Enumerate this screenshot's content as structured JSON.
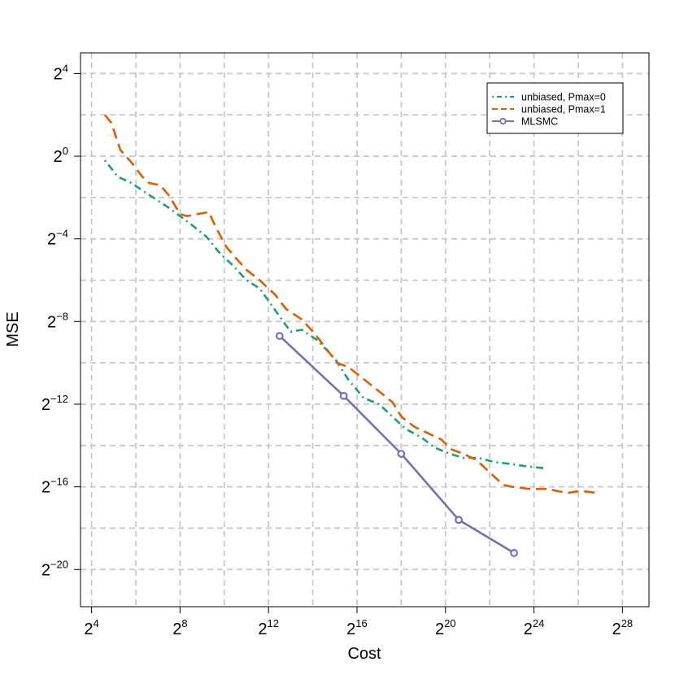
{
  "chart_data": {
    "type": "line",
    "xlabel": "Cost",
    "ylabel": "MSE",
    "scale": "log2",
    "xlim_log2": [
      3.5,
      29.2
    ],
    "ylim_log2": [
      -21.8,
      5.0
    ],
    "x_ticks": [
      {
        "base": "2",
        "exp": "4",
        "log2": 4
      },
      {
        "base": "2",
        "exp": "8",
        "log2": 8
      },
      {
        "base": "2",
        "exp": "12",
        "log2": 12
      },
      {
        "base": "2",
        "exp": "16",
        "log2": 16
      },
      {
        "base": "2",
        "exp": "20",
        "log2": 20
      },
      {
        "base": "2",
        "exp": "24",
        "log2": 24
      },
      {
        "base": "2",
        "exp": "28",
        "log2": 28
      }
    ],
    "y_ticks": [
      {
        "base": "2",
        "exp": "4",
        "log2": 4
      },
      {
        "base": "2",
        "exp": "0",
        "log2": 0
      },
      {
        "base": "2",
        "exp": "−4",
        "log2": -4
      },
      {
        "base": "2",
        "exp": "−8",
        "log2": -8
      },
      {
        "base": "2",
        "exp": "−12",
        "log2": -12
      },
      {
        "base": "2",
        "exp": "−16",
        "log2": -16
      },
      {
        "base": "2",
        "exp": "−20",
        "log2": -20
      }
    ],
    "grid": true,
    "legend_position": "top-right",
    "series": [
      {
        "name": "unbiased, Pmax=0",
        "color": "#1b9e77",
        "dash": "dotdash",
        "marker": "none",
        "x_log2": [
          4.6,
          5.2,
          5.8,
          6.5,
          7.5,
          8.5,
          9.2,
          9.8,
          10.4,
          11.0,
          11.6,
          12.4,
          13.0,
          13.5,
          14.2,
          15.0,
          15.6,
          16.3,
          17.0,
          17.6,
          18.2,
          18.9,
          19.5,
          20.2,
          20.8,
          21.5,
          22.2,
          23.0,
          23.6,
          24.5
        ],
        "y_log2": [
          -0.2,
          -1.0,
          -1.3,
          -1.8,
          -2.5,
          -3.3,
          -3.9,
          -4.7,
          -5.3,
          -6.0,
          -6.4,
          -7.6,
          -8.5,
          -8.4,
          -8.9,
          -9.8,
          -10.8,
          -11.7,
          -12.0,
          -12.6,
          -13.2,
          -13.6,
          -14.1,
          -14.4,
          -14.6,
          -14.6,
          -14.8,
          -14.9,
          -15.0,
          -15.1
        ]
      },
      {
        "name": "unbiased, Pmax=1",
        "color": "#d95f02",
        "dash": "dashed",
        "marker": "none",
        "x_log2": [
          4.6,
          4.9,
          5.3,
          5.8,
          6.3,
          6.6,
          7.1,
          7.5,
          8.0,
          8.3,
          8.8,
          9.3,
          9.6,
          10.1,
          10.5,
          11.0,
          11.6,
          12.3,
          12.8,
          13.5,
          14.1,
          14.6,
          15.1,
          15.6,
          16.2,
          16.9,
          17.6,
          18.0,
          18.6,
          19.2,
          19.8,
          20.3,
          20.8,
          21.4,
          22.0,
          22.6,
          23.0,
          23.8,
          24.6,
          25.5,
          26.1,
          26.9
        ],
        "y_log2": [
          2.0,
          1.6,
          0.3,
          -0.3,
          -1.0,
          -1.3,
          -1.4,
          -1.9,
          -2.8,
          -2.9,
          -2.8,
          -2.7,
          -3.4,
          -4.4,
          -4.9,
          -5.5,
          -6.0,
          -6.7,
          -7.4,
          -7.9,
          -8.6,
          -9.3,
          -10.0,
          -10.2,
          -10.7,
          -11.3,
          -11.9,
          -12.6,
          -13.1,
          -13.4,
          -13.7,
          -14.2,
          -14.4,
          -14.7,
          -15.3,
          -15.9,
          -16.0,
          -16.1,
          -16.1,
          -16.3,
          -16.2,
          -16.3
        ]
      },
      {
        "name": "MLSMC",
        "color": "#7570b3",
        "dash": "solid",
        "marker": "circle",
        "x_log2": [
          12.5,
          15.4,
          18.0,
          20.6,
          23.1
        ],
        "y_log2": [
          -8.7,
          -11.6,
          -14.4,
          -17.6,
          -19.2
        ]
      }
    ]
  }
}
